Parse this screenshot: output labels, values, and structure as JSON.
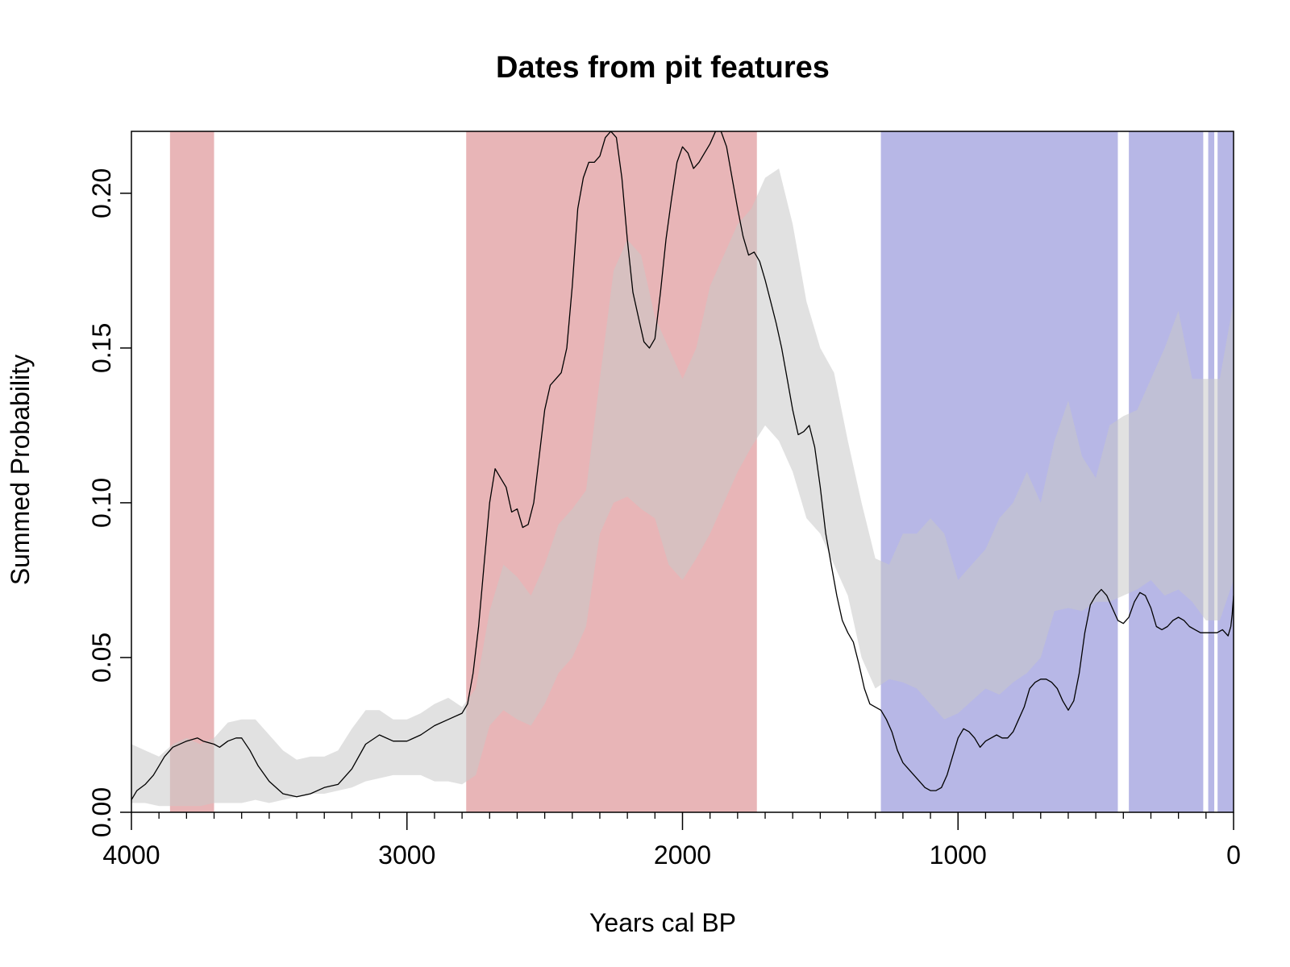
{
  "chart_data": {
    "type": "area",
    "title": "Dates from pit features",
    "xlabel": "Years cal BP",
    "ylabel": "Summed Probability",
    "xlim": [
      4000,
      0
    ],
    "ylim": [
      0,
      0.22
    ],
    "x_ticks": [
      {
        "value": 4000,
        "label": "4000"
      },
      {
        "value": 3000,
        "label": "3000"
      },
      {
        "value": 2000,
        "label": "2000"
      },
      {
        "value": 1000,
        "label": "1000"
      },
      {
        "value": 0,
        "label": "0"
      }
    ],
    "x_minor_step": 100,
    "y_ticks": [
      {
        "value": 0,
        "label": "0.00"
      },
      {
        "value": 0.05,
        "label": "0.05"
      },
      {
        "value": 0.1,
        "label": "0.10"
      },
      {
        "value": 0.15,
        "label": "0.15"
      },
      {
        "value": 0.2,
        "label": "0.20"
      }
    ],
    "colors": {
      "envelope": "#c8c8c8",
      "positive_deviation": "#e8b5b7",
      "negative_deviation": "#b7b7e6",
      "spd_line": "#000000"
    },
    "deviation_regions": [
      {
        "type": "positive",
        "from": 3860,
        "to": 3700
      },
      {
        "type": "positive",
        "from": 2785,
        "to": 1730
      },
      {
        "type": "negative",
        "from": 1280,
        "to": 420
      },
      {
        "type": "negative",
        "from": 380,
        "to": 110
      },
      {
        "type": "negative",
        "from": 92,
        "to": 70
      },
      {
        "type": "negative",
        "from": 58,
        "to": 0
      }
    ],
    "envelope_upper": [
      [
        4000,
        0.022
      ],
      [
        3950,
        0.02
      ],
      [
        3900,
        0.018
      ],
      [
        3850,
        0.022
      ],
      [
        3800,
        0.024
      ],
      [
        3750,
        0.022
      ],
      [
        3700,
        0.024
      ],
      [
        3650,
        0.029
      ],
      [
        3600,
        0.03
      ],
      [
        3550,
        0.03
      ],
      [
        3500,
        0.025
      ],
      [
        3450,
        0.02
      ],
      [
        3400,
        0.017
      ],
      [
        3350,
        0.018
      ],
      [
        3300,
        0.018
      ],
      [
        3250,
        0.02
      ],
      [
        3200,
        0.027
      ],
      [
        3150,
        0.033
      ],
      [
        3100,
        0.033
      ],
      [
        3050,
        0.03
      ],
      [
        3000,
        0.03
      ],
      [
        2950,
        0.032
      ],
      [
        2900,
        0.035
      ],
      [
        2850,
        0.037
      ],
      [
        2800,
        0.034
      ],
      [
        2750,
        0.04
      ],
      [
        2700,
        0.065
      ],
      [
        2650,
        0.08
      ],
      [
        2600,
        0.076
      ],
      [
        2550,
        0.07
      ],
      [
        2500,
        0.08
      ],
      [
        2450,
        0.093
      ],
      [
        2400,
        0.098
      ],
      [
        2350,
        0.104
      ],
      [
        2300,
        0.14
      ],
      [
        2250,
        0.175
      ],
      [
        2200,
        0.185
      ],
      [
        2150,
        0.18
      ],
      [
        2100,
        0.16
      ],
      [
        2050,
        0.15
      ],
      [
        2000,
        0.14
      ],
      [
        1950,
        0.15
      ],
      [
        1900,
        0.17
      ],
      [
        1850,
        0.18
      ],
      [
        1800,
        0.19
      ],
      [
        1750,
        0.195
      ],
      [
        1700,
        0.205
      ],
      [
        1650,
        0.208
      ],
      [
        1600,
        0.19
      ],
      [
        1550,
        0.165
      ],
      [
        1500,
        0.15
      ],
      [
        1450,
        0.142
      ],
      [
        1400,
        0.12
      ],
      [
        1350,
        0.1
      ],
      [
        1300,
        0.082
      ],
      [
        1250,
        0.08
      ],
      [
        1200,
        0.09
      ],
      [
        1150,
        0.09
      ],
      [
        1100,
        0.095
      ],
      [
        1050,
        0.09
      ],
      [
        1000,
        0.075
      ],
      [
        950,
        0.08
      ],
      [
        900,
        0.085
      ],
      [
        850,
        0.095
      ],
      [
        800,
        0.1
      ],
      [
        750,
        0.11
      ],
      [
        700,
        0.1
      ],
      [
        650,
        0.12
      ],
      [
        600,
        0.133
      ],
      [
        550,
        0.115
      ],
      [
        500,
        0.108
      ],
      [
        450,
        0.125
      ],
      [
        400,
        0.128
      ],
      [
        350,
        0.13
      ],
      [
        300,
        0.14
      ],
      [
        250,
        0.15
      ],
      [
        200,
        0.162
      ],
      [
        150,
        0.14
      ],
      [
        100,
        0.14
      ],
      [
        50,
        0.14
      ],
      [
        0,
        0.165
      ]
    ],
    "envelope_lower": [
      [
        4000,
        0.003
      ],
      [
        3950,
        0.003
      ],
      [
        3900,
        0.002
      ],
      [
        3850,
        0.002
      ],
      [
        3800,
        0.002
      ],
      [
        3750,
        0.002
      ],
      [
        3700,
        0.003
      ],
      [
        3650,
        0.003
      ],
      [
        3600,
        0.003
      ],
      [
        3550,
        0.004
      ],
      [
        3500,
        0.003
      ],
      [
        3450,
        0.004
      ],
      [
        3400,
        0.005
      ],
      [
        3350,
        0.006
      ],
      [
        3300,
        0.006
      ],
      [
        3250,
        0.007
      ],
      [
        3200,
        0.008
      ],
      [
        3150,
        0.01
      ],
      [
        3100,
        0.011
      ],
      [
        3050,
        0.012
      ],
      [
        3000,
        0.012
      ],
      [
        2950,
        0.012
      ],
      [
        2900,
        0.01
      ],
      [
        2850,
        0.01
      ],
      [
        2800,
        0.009
      ],
      [
        2750,
        0.012
      ],
      [
        2700,
        0.028
      ],
      [
        2650,
        0.033
      ],
      [
        2600,
        0.03
      ],
      [
        2550,
        0.028
      ],
      [
        2500,
        0.035
      ],
      [
        2450,
        0.045
      ],
      [
        2400,
        0.05
      ],
      [
        2350,
        0.06
      ],
      [
        2300,
        0.09
      ],
      [
        2250,
        0.1
      ],
      [
        2200,
        0.102
      ],
      [
        2150,
        0.098
      ],
      [
        2100,
        0.095
      ],
      [
        2050,
        0.08
      ],
      [
        2000,
        0.075
      ],
      [
        1950,
        0.082
      ],
      [
        1900,
        0.09
      ],
      [
        1850,
        0.1
      ],
      [
        1800,
        0.11
      ],
      [
        1750,
        0.118
      ],
      [
        1700,
        0.125
      ],
      [
        1650,
        0.12
      ],
      [
        1600,
        0.11
      ],
      [
        1550,
        0.095
      ],
      [
        1500,
        0.09
      ],
      [
        1450,
        0.08
      ],
      [
        1400,
        0.07
      ],
      [
        1350,
        0.05
      ],
      [
        1300,
        0.04
      ],
      [
        1250,
        0.043
      ],
      [
        1200,
        0.042
      ],
      [
        1150,
        0.04
      ],
      [
        1100,
        0.035
      ],
      [
        1050,
        0.03
      ],
      [
        1000,
        0.032
      ],
      [
        950,
        0.036
      ],
      [
        900,
        0.04
      ],
      [
        850,
        0.038
      ],
      [
        800,
        0.042
      ],
      [
        750,
        0.045
      ],
      [
        700,
        0.05
      ],
      [
        650,
        0.065
      ],
      [
        600,
        0.066
      ],
      [
        550,
        0.065
      ],
      [
        500,
        0.068
      ],
      [
        450,
        0.068
      ],
      [
        400,
        0.07
      ],
      [
        350,
        0.072
      ],
      [
        300,
        0.075
      ],
      [
        250,
        0.07
      ],
      [
        200,
        0.072
      ],
      [
        150,
        0.068
      ],
      [
        100,
        0.062
      ],
      [
        50,
        0.062
      ],
      [
        0,
        0.075
      ]
    ],
    "spd_line": [
      [
        4000,
        0.004
      ],
      [
        3980,
        0.007
      ],
      [
        3950,
        0.009
      ],
      [
        3920,
        0.012
      ],
      [
        3900,
        0.015
      ],
      [
        3880,
        0.018
      ],
      [
        3850,
        0.021
      ],
      [
        3800,
        0.023
      ],
      [
        3760,
        0.024
      ],
      [
        3740,
        0.023
      ],
      [
        3700,
        0.022
      ],
      [
        3680,
        0.021
      ],
      [
        3650,
        0.023
      ],
      [
        3620,
        0.024
      ],
      [
        3600,
        0.024
      ],
      [
        3570,
        0.02
      ],
      [
        3540,
        0.015
      ],
      [
        3500,
        0.01
      ],
      [
        3450,
        0.006
      ],
      [
        3400,
        0.005
      ],
      [
        3350,
        0.006
      ],
      [
        3300,
        0.008
      ],
      [
        3250,
        0.009
      ],
      [
        3200,
        0.014
      ],
      [
        3150,
        0.022
      ],
      [
        3100,
        0.025
      ],
      [
        3050,
        0.023
      ],
      [
        3000,
        0.023
      ],
      [
        2950,
        0.025
      ],
      [
        2900,
        0.028
      ],
      [
        2850,
        0.03
      ],
      [
        2800,
        0.032
      ],
      [
        2780,
        0.035
      ],
      [
        2760,
        0.045
      ],
      [
        2740,
        0.06
      ],
      [
        2720,
        0.08
      ],
      [
        2700,
        0.1
      ],
      [
        2680,
        0.111
      ],
      [
        2660,
        0.108
      ],
      [
        2640,
        0.105
      ],
      [
        2620,
        0.097
      ],
      [
        2600,
        0.098
      ],
      [
        2580,
        0.092
      ],
      [
        2560,
        0.093
      ],
      [
        2540,
        0.1
      ],
      [
        2520,
        0.115
      ],
      [
        2500,
        0.13
      ],
      [
        2480,
        0.138
      ],
      [
        2460,
        0.14
      ],
      [
        2440,
        0.142
      ],
      [
        2420,
        0.15
      ],
      [
        2400,
        0.17
      ],
      [
        2380,
        0.195
      ],
      [
        2360,
        0.205
      ],
      [
        2340,
        0.21
      ],
      [
        2320,
        0.21
      ],
      [
        2300,
        0.212
      ],
      [
        2280,
        0.218
      ],
      [
        2260,
        0.22
      ],
      [
        2240,
        0.218
      ],
      [
        2220,
        0.205
      ],
      [
        2200,
        0.185
      ],
      [
        2180,
        0.168
      ],
      [
        2160,
        0.16
      ],
      [
        2140,
        0.152
      ],
      [
        2120,
        0.15
      ],
      [
        2100,
        0.153
      ],
      [
        2080,
        0.168
      ],
      [
        2060,
        0.185
      ],
      [
        2040,
        0.198
      ],
      [
        2020,
        0.21
      ],
      [
        2000,
        0.215
      ],
      [
        1980,
        0.213
      ],
      [
        1960,
        0.208
      ],
      [
        1940,
        0.21
      ],
      [
        1920,
        0.213
      ],
      [
        1900,
        0.216
      ],
      [
        1880,
        0.22
      ],
      [
        1860,
        0.22
      ],
      [
        1840,
        0.215
      ],
      [
        1820,
        0.205
      ],
      [
        1800,
        0.195
      ],
      [
        1780,
        0.186
      ],
      [
        1760,
        0.18
      ],
      [
        1740,
        0.181
      ],
      [
        1720,
        0.178
      ],
      [
        1700,
        0.172
      ],
      [
        1680,
        0.165
      ],
      [
        1660,
        0.158
      ],
      [
        1640,
        0.15
      ],
      [
        1620,
        0.14
      ],
      [
        1600,
        0.13
      ],
      [
        1580,
        0.122
      ],
      [
        1560,
        0.123
      ],
      [
        1540,
        0.125
      ],
      [
        1520,
        0.118
      ],
      [
        1500,
        0.105
      ],
      [
        1480,
        0.09
      ],
      [
        1460,
        0.08
      ],
      [
        1440,
        0.07
      ],
      [
        1420,
        0.062
      ],
      [
        1400,
        0.058
      ],
      [
        1380,
        0.055
      ],
      [
        1360,
        0.048
      ],
      [
        1340,
        0.04
      ],
      [
        1320,
        0.035
      ],
      [
        1300,
        0.034
      ],
      [
        1280,
        0.033
      ],
      [
        1260,
        0.03
      ],
      [
        1240,
        0.026
      ],
      [
        1220,
        0.02
      ],
      [
        1200,
        0.016
      ],
      [
        1180,
        0.014
      ],
      [
        1160,
        0.012
      ],
      [
        1140,
        0.01
      ],
      [
        1120,
        0.008
      ],
      [
        1100,
        0.007
      ],
      [
        1080,
        0.007
      ],
      [
        1060,
        0.008
      ],
      [
        1040,
        0.012
      ],
      [
        1020,
        0.018
      ],
      [
        1000,
        0.024
      ],
      [
        980,
        0.027
      ],
      [
        960,
        0.026
      ],
      [
        940,
        0.024
      ],
      [
        920,
        0.021
      ],
      [
        900,
        0.023
      ],
      [
        880,
        0.024
      ],
      [
        860,
        0.025
      ],
      [
        840,
        0.024
      ],
      [
        820,
        0.024
      ],
      [
        800,
        0.026
      ],
      [
        780,
        0.03
      ],
      [
        760,
        0.034
      ],
      [
        740,
        0.04
      ],
      [
        720,
        0.042
      ],
      [
        700,
        0.043
      ],
      [
        680,
        0.043
      ],
      [
        660,
        0.042
      ],
      [
        640,
        0.04
      ],
      [
        620,
        0.036
      ],
      [
        600,
        0.033
      ],
      [
        580,
        0.036
      ],
      [
        560,
        0.045
      ],
      [
        540,
        0.058
      ],
      [
        520,
        0.067
      ],
      [
        500,
        0.07
      ],
      [
        480,
        0.072
      ],
      [
        460,
        0.07
      ],
      [
        440,
        0.066
      ],
      [
        420,
        0.062
      ],
      [
        400,
        0.061
      ],
      [
        380,
        0.063
      ],
      [
        360,
        0.068
      ],
      [
        340,
        0.071
      ],
      [
        320,
        0.07
      ],
      [
        300,
        0.066
      ],
      [
        280,
        0.06
      ],
      [
        260,
        0.059
      ],
      [
        240,
        0.06
      ],
      [
        220,
        0.062
      ],
      [
        200,
        0.063
      ],
      [
        180,
        0.062
      ],
      [
        160,
        0.06
      ],
      [
        140,
        0.059
      ],
      [
        120,
        0.058
      ],
      [
        100,
        0.058
      ],
      [
        80,
        0.058
      ],
      [
        60,
        0.058
      ],
      [
        40,
        0.059
      ],
      [
        20,
        0.057
      ],
      [
        10,
        0.06
      ],
      [
        5,
        0.064
      ],
      [
        0,
        0.07
      ]
    ]
  }
}
